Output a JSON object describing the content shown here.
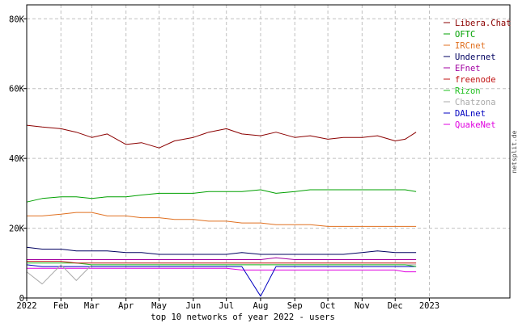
{
  "chart_data": {
    "type": "line",
    "title": "",
    "xlabel": "top 10 networks of year 2022 - users",
    "ylabel": "",
    "credit": "netsplit.de",
    "xlim": [
      "2022-01-01",
      "2023-03-15"
    ],
    "ylim": [
      0,
      84000
    ],
    "x_ticks": [
      {
        "date": "2022-01-01",
        "label": "2022"
      },
      {
        "date": "2022-02-01",
        "label": "Feb"
      },
      {
        "date": "2022-03-01",
        "label": "Mar"
      },
      {
        "date": "2022-04-01",
        "label": "Apr"
      },
      {
        "date": "2022-05-01",
        "label": "May"
      },
      {
        "date": "2022-06-01",
        "label": "Jun"
      },
      {
        "date": "2022-07-01",
        "label": "Jul"
      },
      {
        "date": "2022-08-01",
        "label": "Aug"
      },
      {
        "date": "2022-09-01",
        "label": "Sep"
      },
      {
        "date": "2022-10-01",
        "label": "Oct"
      },
      {
        "date": "2022-11-01",
        "label": "Nov"
      },
      {
        "date": "2022-12-01",
        "label": "Dec"
      },
      {
        "date": "2023-01-01",
        "label": "2023"
      }
    ],
    "y_ticks": [
      {
        "value": 0,
        "label": "0"
      },
      {
        "value": 20000,
        "label": "20K"
      },
      {
        "value": 40000,
        "label": "40K"
      },
      {
        "value": 60000,
        "label": "60K"
      },
      {
        "value": 80000,
        "label": "80K"
      }
    ],
    "grid": true,
    "legend_position": "top-right",
    "x": [
      "2022-01-01",
      "2022-01-15",
      "2022-02-01",
      "2022-02-15",
      "2022-03-01",
      "2022-03-15",
      "2022-04-01",
      "2022-04-15",
      "2022-05-01",
      "2022-05-15",
      "2022-06-01",
      "2022-06-15",
      "2022-07-01",
      "2022-07-15",
      "2022-08-01",
      "2022-08-15",
      "2022-09-01",
      "2022-09-15",
      "2022-10-01",
      "2022-10-15",
      "2022-11-01",
      "2022-11-15",
      "2022-12-01",
      "2022-12-10",
      "2022-12-20"
    ],
    "series": [
      {
        "name": "Libera.Chat",
        "color": "#8b0000",
        "values": [
          49500,
          49000,
          48500,
          47500,
          46000,
          47000,
          44000,
          44500,
          43000,
          45000,
          46000,
          47500,
          48500,
          47000,
          46500,
          47500,
          46000,
          46500,
          45500,
          46000,
          46000,
          46500,
          45000,
          45500,
          47500
        ]
      },
      {
        "name": "OFTC",
        "color": "#00a000",
        "values": [
          27500,
          28500,
          29000,
          29000,
          28500,
          29000,
          29000,
          29500,
          30000,
          30000,
          30000,
          30500,
          30500,
          30500,
          31000,
          30000,
          30500,
          31000,
          31000,
          31000,
          31000,
          31000,
          31000,
          31000,
          30500
        ]
      },
      {
        "name": "IRCnet",
        "color": "#e07020",
        "values": [
          23500,
          23500,
          24000,
          24500,
          24500,
          23500,
          23500,
          23000,
          23000,
          22500,
          22500,
          22000,
          22000,
          21500,
          21500,
          21000,
          21000,
          21000,
          20500,
          20500,
          20500,
          20500,
          20500,
          20500,
          20500
        ]
      },
      {
        "name": "Undernet",
        "color": "#000060",
        "values": [
          14500,
          14000,
          14000,
          13500,
          13500,
          13500,
          13000,
          13000,
          12500,
          12500,
          12500,
          12500,
          12500,
          13000,
          12500,
          12500,
          12500,
          12500,
          12500,
          12500,
          13000,
          13500,
          13000,
          13000,
          13000
        ]
      },
      {
        "name": "EFnet",
        "color": "#a000a0",
        "values": [
          11000,
          11000,
          11000,
          11000,
          11000,
          11000,
          11000,
          11000,
          11000,
          11000,
          11000,
          11000,
          11000,
          11000,
          11000,
          11500,
          11000,
          11000,
          11000,
          11000,
          11000,
          11000,
          11000,
          11000,
          11000
        ]
      },
      {
        "name": "freenode",
        "color": "#c01010",
        "values": [
          10500,
          10500,
          10500,
          10000,
          10000,
          10000,
          10000,
          10000,
          10000,
          10000,
          10000,
          10000,
          10000,
          10000,
          10000,
          10000,
          10000,
          10000,
          10000,
          10000,
          10000,
          10000,
          10000,
          10000,
          10000
        ]
      },
      {
        "name": "Rizon",
        "color": "#20c020",
        "values": [
          10000,
          10000,
          10000,
          10000,
          9500,
          9500,
          9500,
          9500,
          9500,
          9500,
          9500,
          9500,
          9500,
          9500,
          9500,
          9500,
          9500,
          9500,
          9500,
          9500,
          9500,
          9500,
          9500,
          9500,
          9000
        ]
      },
      {
        "name": "Chatzona",
        "color": "#aaaaaa",
        "values": [
          7500,
          4000,
          9500,
          5000,
          9500,
          9500,
          9500,
          9500,
          9500,
          9500,
          9500,
          9500,
          9500,
          9500,
          9500,
          9500,
          9500,
          9500,
          9500,
          9500,
          9500,
          9500,
          9500,
          9500,
          9500
        ]
      },
      {
        "name": "DALnet",
        "color": "#0000c0",
        "values": [
          9500,
          9000,
          9000,
          9000,
          9000,
          9000,
          9000,
          9000,
          9000,
          9000,
          9000,
          9000,
          9000,
          9000,
          500,
          9000,
          9000,
          9000,
          9000,
          9000,
          9000,
          9000,
          9000,
          9000,
          9000
        ]
      },
      {
        "name": "QuakeNet",
        "color": "#e000e0",
        "values": [
          8500,
          8500,
          8500,
          8500,
          8500,
          8500,
          8500,
          8500,
          8500,
          8500,
          8500,
          8500,
          8500,
          8000,
          8000,
          8000,
          8000,
          8000,
          8000,
          8000,
          8000,
          8000,
          8000,
          7500,
          7500
        ]
      }
    ]
  }
}
